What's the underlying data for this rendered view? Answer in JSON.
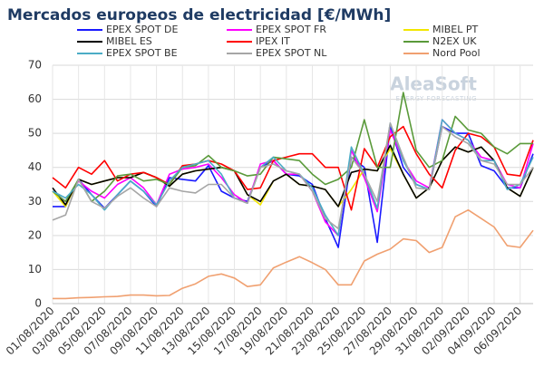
{
  "chart_data": {
    "type": "line",
    "title": "Mercados europeos de electricidad [€/MWh]",
    "watermark": {
      "brand": "AleaSoft",
      "tagline": "ENERGY FORECASTING"
    },
    "categories": [
      "01/08/2020",
      null,
      "03/08/2020",
      null,
      "05/08/2020",
      null,
      "07/08/2020",
      null,
      "09/08/2020",
      null,
      "11/08/2020",
      null,
      "13/08/2020",
      null,
      "15/08/2020",
      null,
      "17/08/2020",
      null,
      "19/08/2020",
      null,
      "21/08/2020",
      null,
      "23/08/2020",
      null,
      "25/08/2020",
      null,
      "27/08/2020",
      null,
      "29/08/2020",
      null,
      "31/08/2020",
      null,
      "02/09/2020",
      null,
      "04/09/2020",
      null,
      "06/09/2020",
      null
    ],
    "ylim": [
      0,
      70
    ],
    "yticks": [
      0,
      10,
      20,
      30,
      40,
      50,
      60,
      70
    ],
    "grid": true,
    "series": [
      {
        "name": "EPEX SPOT DE",
        "color": "#1a1aff",
        "values": [
          28.5,
          28.5,
          36.5,
          32,
          28,
          32,
          36,
          33,
          28.5,
          37,
          36.5,
          36,
          40.5,
          33,
          31,
          30,
          40,
          42,
          38,
          37.5,
          35,
          25,
          16.5,
          43,
          40,
          18,
          52,
          40,
          35,
          33.5,
          52,
          50,
          50,
          40.5,
          39,
          34,
          34,
          44
        ]
      },
      {
        "name": "EPEX SPOT FR",
        "color": "#ff00ff",
        "values": [
          33,
          30,
          36,
          33,
          31,
          35,
          37,
          34,
          29,
          38,
          39.5,
          40,
          41,
          37,
          32,
          29.5,
          41,
          42,
          38,
          38,
          33,
          24,
          20,
          45,
          37,
          27,
          51,
          42,
          36,
          34,
          54,
          50,
          48,
          43,
          42,
          35,
          34,
          47
        ]
      },
      {
        "name": "MIBEL PT",
        "color": "#f2e600",
        "values": [
          33,
          28.5,
          36.5,
          35,
          36,
          37,
          37,
          38.5,
          37,
          34.5,
          38,
          39,
          39.5,
          40,
          39,
          32,
          29,
          36,
          38,
          35,
          34.5,
          33.5,
          28.5,
          33.5,
          39.5,
          39,
          45.5,
          38,
          31,
          34,
          42,
          46,
          44.5,
          46,
          42,
          34,
          31.5,
          40
        ]
      },
      {
        "name": "MIBEL ES",
        "color": "#000000",
        "values": [
          34,
          29,
          36.5,
          35,
          36,
          37,
          37,
          38.5,
          37,
          34.5,
          38,
          39,
          39.5,
          40,
          39,
          32,
          30,
          36,
          38,
          35,
          34.5,
          33.5,
          28.5,
          38.5,
          39.5,
          39,
          46.5,
          38,
          31,
          34,
          42,
          46,
          44.5,
          46,
          42,
          34,
          31.5,
          40
        ]
      },
      {
        "name": "IPEX IT",
        "color": "#ff0000",
        "values": [
          37,
          34,
          40,
          38,
          42,
          36,
          38,
          38.5,
          37,
          35,
          40.5,
          41,
          42,
          41,
          39,
          33.5,
          34,
          42,
          43,
          44,
          44,
          40,
          40,
          27.5,
          45.5,
          40,
          49,
          52,
          44,
          38,
          34,
          45,
          50,
          49,
          46,
          38,
          37.5,
          48
        ]
      },
      {
        "name": "N2EX UK",
        "color": "#5a9a3a",
        "values": [
          33,
          30,
          36.5,
          30,
          33,
          37.5,
          38,
          36,
          36.5,
          35,
          40,
          40.5,
          43.5,
          40,
          39,
          37.5,
          38,
          43,
          42.5,
          42,
          38,
          35,
          36.5,
          40,
          54,
          40,
          40,
          62,
          45,
          40,
          42,
          55,
          51,
          50,
          46,
          44,
          47,
          47
        ]
      },
      {
        "name": "EPEX SPOT BE",
        "color": "#4bacc6",
        "values": [
          33,
          31,
          35,
          32,
          27.5,
          32,
          36,
          33,
          29,
          36,
          40,
          41,
          42,
          38,
          31,
          29.5,
          40,
          43,
          39,
          38,
          34,
          26,
          20,
          46,
          38,
          28,
          53,
          42,
          35,
          33.5,
          54,
          50,
          48,
          42,
          42,
          33.5,
          35,
          43
        ]
      },
      {
        "name": "EPEX SPOT NL",
        "color": "#a6a6a6",
        "values": [
          24.5,
          26,
          36.5,
          30,
          28,
          31.5,
          34,
          31,
          28.5,
          34,
          33,
          32.5,
          35,
          35,
          31,
          29.5,
          40,
          41,
          39,
          38,
          33,
          25,
          22,
          43,
          38,
          30,
          53,
          43,
          34,
          33.5,
          52,
          49,
          47,
          42,
          41,
          35,
          35,
          40
        ]
      },
      {
        "name": "Nord Pool",
        "color": "#f0a070",
        "values": [
          1.5,
          1.5,
          1.7,
          1.8,
          2,
          2.1,
          2.5,
          2.5,
          2.3,
          2.4,
          4.5,
          5.8,
          8,
          8.7,
          7.5,
          5,
          5.5,
          10.5,
          12.2,
          13.8,
          12,
          10,
          5.5,
          5.5,
          12.5,
          14.5,
          16,
          19,
          18.5,
          15,
          16.5,
          25.5,
          27.5,
          25,
          22.5,
          17,
          16.5,
          21.5
        ]
      }
    ]
  }
}
